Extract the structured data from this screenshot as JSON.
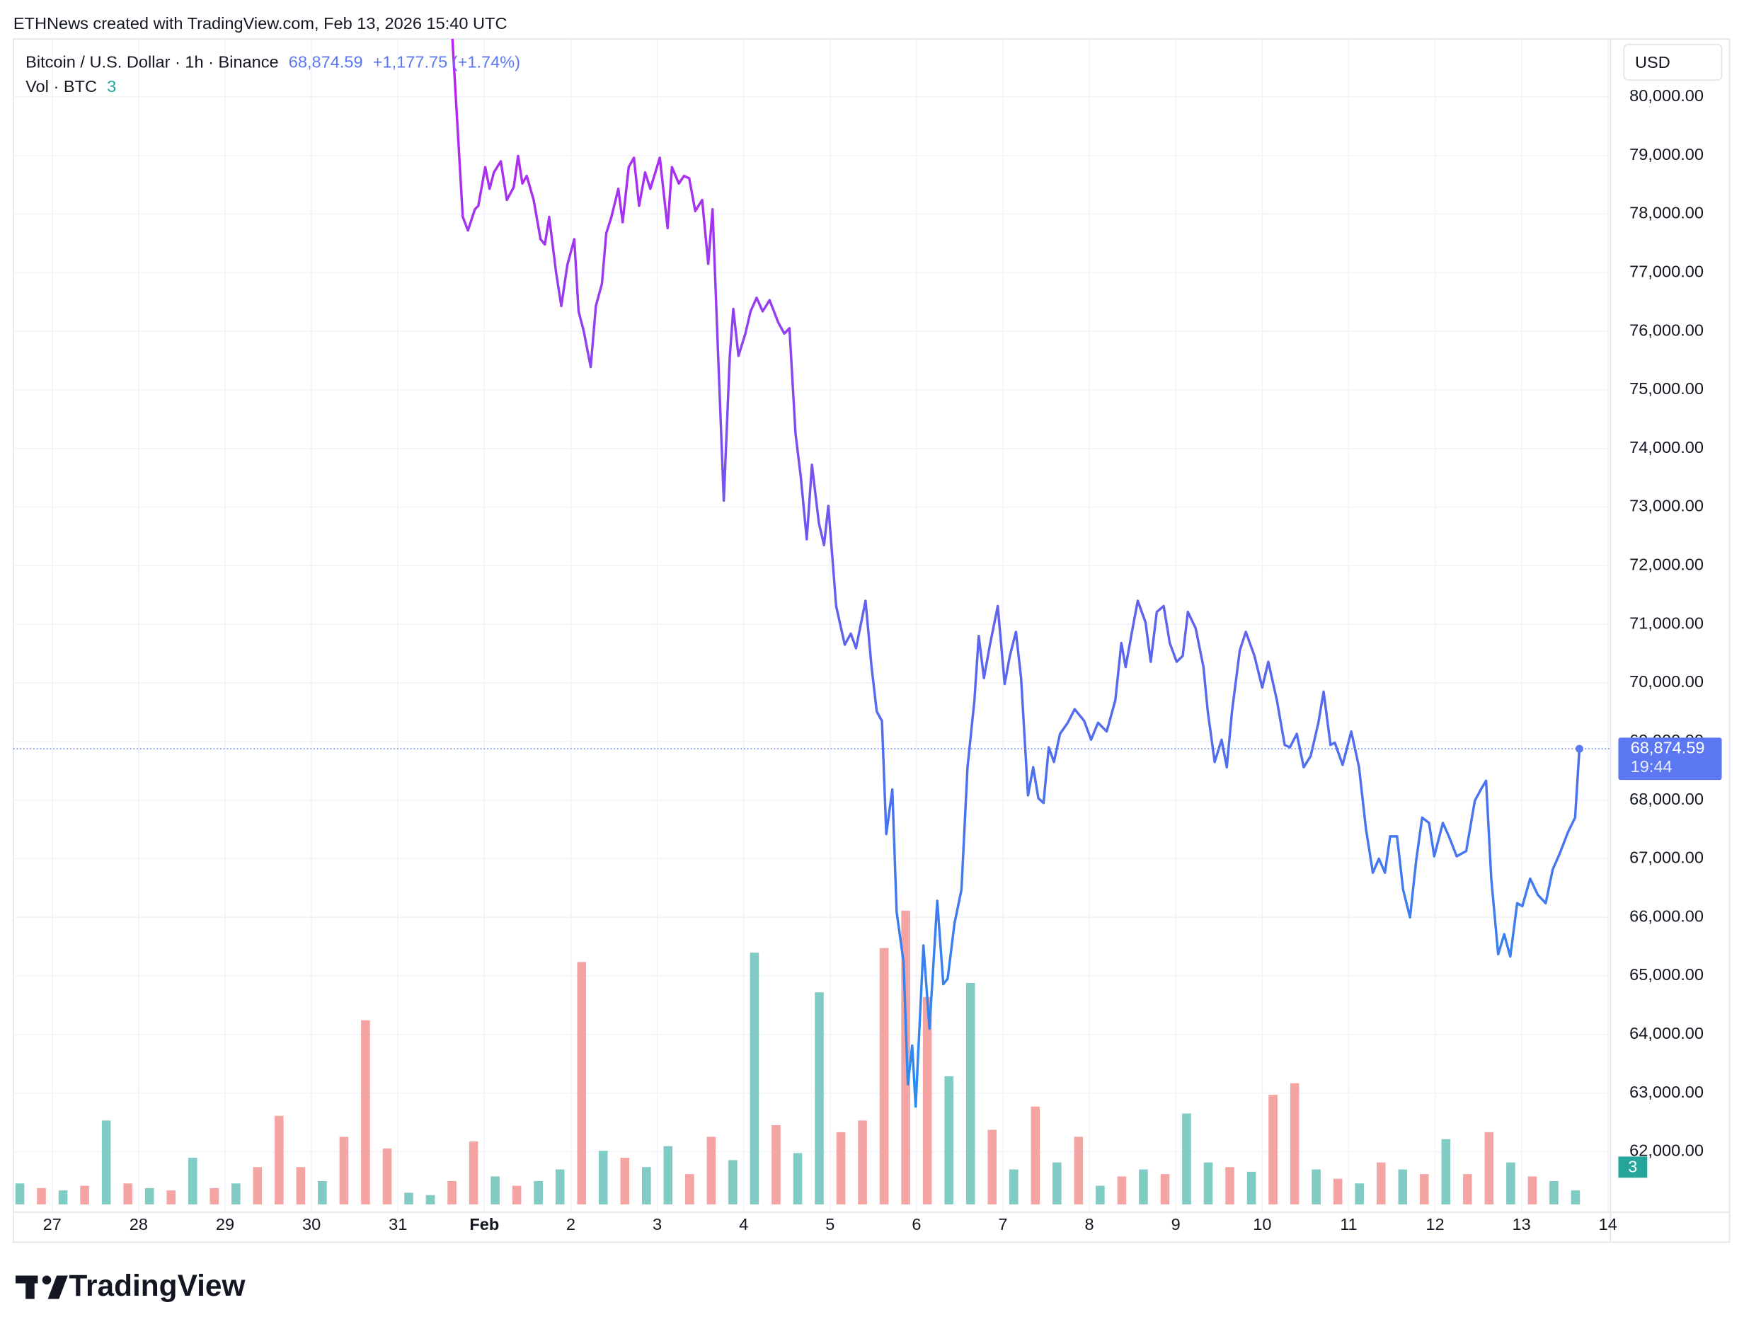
{
  "watermark": "ETHNews created with TradingView.com, Feb 13, 2026 15:40 UTC",
  "branding": "TradingView",
  "chart_data": {
    "type": "line",
    "title": "Bitcoin / U.S. Dollar · 1h · Binance",
    "last_price": {
      "value": 68874.59,
      "label": "68,874.59"
    },
    "change": "+1,177.75 (+1.74%)",
    "countdown": "19:44",
    "currency": "USD",
    "line_colors": [
      "#c21ff0",
      "#5f63ee",
      "#1e96f0"
    ],
    "last_color": "#5b78f2",
    "grid": true,
    "xlim": [
      -0.45,
      18.03
    ],
    "xticks": [
      {
        "value": 0,
        "label": "27"
      },
      {
        "value": 1,
        "label": "28"
      },
      {
        "value": 2,
        "label": "29"
      },
      {
        "value": 3,
        "label": "30"
      },
      {
        "value": 4,
        "label": "31"
      },
      {
        "value": 5,
        "label": "Feb"
      },
      {
        "value": 6,
        "label": "2"
      },
      {
        "value": 7,
        "label": "3"
      },
      {
        "value": 8,
        "label": "4"
      },
      {
        "value": 9,
        "label": "5"
      },
      {
        "value": 10,
        "label": "6"
      },
      {
        "value": 11,
        "label": "7"
      },
      {
        "value": 12,
        "label": "8"
      },
      {
        "value": 13,
        "label": "9"
      },
      {
        "value": 14,
        "label": "10"
      },
      {
        "value": 15,
        "label": "11"
      },
      {
        "value": 16,
        "label": "12"
      },
      {
        "value": 17,
        "label": "13"
      },
      {
        "value": 18,
        "label": "14"
      }
    ],
    "ylim": [
      61000,
      81000
    ],
    "yticks": [
      {
        "value": 62000,
        "label": "62,000.00"
      },
      {
        "value": 63000,
        "label": "63,000.00"
      },
      {
        "value": 64000,
        "label": "64,000.00"
      },
      {
        "value": 65000,
        "label": "65,000.00"
      },
      {
        "value": 66000,
        "label": "66,000.00"
      },
      {
        "value": 67000,
        "label": "67,000.00"
      },
      {
        "value": 68000,
        "label": "68,000.00"
      },
      {
        "value": 69000,
        "label": "69,000.00"
      },
      {
        "value": 70000,
        "label": "70,000.00"
      },
      {
        "value": 71000,
        "label": "71,000.00"
      },
      {
        "value": 72000,
        "label": "72,000.00"
      },
      {
        "value": 73000,
        "label": "73,000.00"
      },
      {
        "value": 74000,
        "label": "74,000.00"
      },
      {
        "value": 75000,
        "label": "75,000.00"
      },
      {
        "value": 76000,
        "label": "76,000.00"
      },
      {
        "value": 77000,
        "label": "77,000.00"
      },
      {
        "value": 78000,
        "label": "78,000.00"
      },
      {
        "value": 79000,
        "label": "79,000.00"
      },
      {
        "value": 80000,
        "label": "80,000.00"
      }
    ],
    "x": [
      4.63,
      4.75,
      4.81,
      4.89,
      4.93,
      5.01,
      5.06,
      5.11,
      5.19,
      5.26,
      5.34,
      5.39,
      5.44,
      5.49,
      5.57,
      5.65,
      5.7,
      5.75,
      5.83,
      5.89,
      5.96,
      6.04,
      6.09,
      6.15,
      6.23,
      6.29,
      6.36,
      6.41,
      6.47,
      6.55,
      6.6,
      6.67,
      6.73,
      6.79,
      6.86,
      6.92,
      7.03,
      7.12,
      7.17,
      7.25,
      7.31,
      7.37,
      7.44,
      7.52,
      7.59,
      7.64,
      7.71,
      7.77,
      7.84,
      7.88,
      7.94,
      8.02,
      8.08,
      8.15,
      8.22,
      8.3,
      8.4,
      8.47,
      8.53,
      8.6,
      8.66,
      8.73,
      8.79,
      8.87,
      8.93,
      8.98,
      9.07,
      9.17,
      9.24,
      9.3,
      9.41,
      9.48,
      9.54,
      9.6,
      9.65,
      9.72,
      9.77,
      9.85,
      9.9,
      9.95,
      9.99,
      10.08,
      10.15,
      10.24,
      10.31,
      10.36,
      10.44,
      10.52,
      10.59,
      10.67,
      10.72,
      10.78,
      10.85,
      10.94,
      11.02,
      11.08,
      11.15,
      11.21,
      11.29,
      11.35,
      11.41,
      11.47,
      11.53,
      11.59,
      11.66,
      11.75,
      11.83,
      11.94,
      12.02,
      12.1,
      12.2,
      12.3,
      12.37,
      12.42,
      12.5,
      12.56,
      12.65,
      12.71,
      12.78,
      12.86,
      12.93,
      13.01,
      13.08,
      13.14,
      13.23,
      13.32,
      13.37,
      13.45,
      13.53,
      13.59,
      13.65,
      13.74,
      13.81,
      13.91,
      14.0,
      14.07,
      14.17,
      14.26,
      14.32,
      14.4,
      14.48,
      14.56,
      14.65,
      14.71,
      14.79,
      14.84,
      14.93,
      15.03,
      15.12,
      15.2,
      15.28,
      15.35,
      15.42,
      15.48,
      15.56,
      15.63,
      15.71,
      15.78,
      15.85,
      15.93,
      15.99,
      16.09,
      16.16,
      16.25,
      16.36,
      16.46,
      16.53,
      16.59,
      16.65,
      16.73,
      16.8,
      16.87,
      16.95,
      17.01,
      17.1,
      17.19,
      17.28,
      17.36,
      17.44,
      17.54,
      17.62,
      17.67
    ],
    "values": [
      80990,
      77950,
      77720,
      78080,
      78140,
      78800,
      78430,
      78710,
      78900,
      78240,
      78460,
      78990,
      78520,
      78650,
      78240,
      77570,
      77480,
      77950,
      77000,
      76430,
      77130,
      77570,
      76340,
      76000,
      75390,
      76430,
      76810,
      77670,
      77950,
      78430,
      77860,
      78800,
      78960,
      78140,
      78710,
      78430,
      78960,
      77760,
      78800,
      78520,
      78650,
      78610,
      78050,
      78240,
      77150,
      78080,
      75390,
      73110,
      75580,
      76380,
      75580,
      75960,
      76340,
      76570,
      76340,
      76530,
      76150,
      75960,
      76050,
      74250,
      73530,
      72450,
      73720,
      72730,
      72350,
      73020,
      71310,
      70650,
      70840,
      70590,
      71400,
      70270,
      69510,
      69350,
      67420,
      68180,
      66090,
      65240,
      63150,
      63810,
      62770,
      65520,
      64100,
      66280,
      64860,
      64950,
      65900,
      66470,
      68560,
      69700,
      70800,
      70080,
      70650,
      71310,
      69980,
      70460,
      70870,
      70080,
      68080,
      68560,
      68030,
      67950,
      68900,
      68650,
      69130,
      69320,
      69550,
      69350,
      69030,
      69320,
      69170,
      69700,
      70680,
      70270,
      70930,
      71400,
      71030,
      70360,
      71210,
      71310,
      70680,
      70360,
      70460,
      71210,
      70930,
      70270,
      69510,
      68650,
      69030,
      68560,
      69510,
      70550,
      70870,
      70460,
      69920,
      70360,
      69700,
      68940,
      68900,
      69130,
      68560,
      68750,
      69320,
      69850,
      68940,
      68980,
      68600,
      69170,
      68560,
      67510,
      66760,
      67000,
      66760,
      67380,
      67380,
      66470,
      66000,
      66950,
      67700,
      67610,
      67040,
      67610,
      67380,
      67040,
      67130,
      67990,
      68180,
      68330,
      66660,
      65370,
      65710,
      65330,
      66240,
      66190,
      66660,
      66380,
      66240,
      66810,
      67080,
      67460,
      67700,
      68874.59
    ],
    "volume": {
      "title": "Vol · BTC",
      "last": 3,
      "last_color": "#26a69a",
      "ylim": [
        0,
        50000
      ],
      "x": [
        -0.375,
        -0.125,
        0.125,
        0.375,
        0.625,
        0.875,
        1.125,
        1.375,
        1.625,
        1.875,
        2.125,
        2.375,
        2.625,
        2.875,
        3.125,
        3.375,
        3.625,
        3.875,
        4.125,
        4.375,
        4.625,
        4.875,
        5.125,
        5.375,
        5.625,
        5.875,
        6.125,
        6.375,
        6.625,
        6.875,
        7.125,
        7.375,
        7.625,
        7.875,
        8.125,
        8.375,
        8.625,
        8.875,
        9.125,
        9.375,
        9.625,
        9.875,
        10.125,
        10.375,
        10.625,
        10.875,
        11.125,
        11.375,
        11.625,
        11.875,
        12.125,
        12.375,
        12.625,
        12.875,
        13.125,
        13.375,
        13.625,
        13.875,
        14.125,
        14.375,
        14.625,
        14.875,
        15.125,
        15.375,
        15.625,
        15.875,
        16.125,
        16.375,
        16.625,
        16.875,
        17.125,
        17.375,
        17.625
      ],
      "values": [
        900,
        700,
        600,
        800,
        3600,
        900,
        700,
        600,
        2000,
        700,
        900,
        1600,
        3800,
        1600,
        1000,
        2900,
        7900,
        2400,
        500,
        400,
        1000,
        2700,
        1200,
        800,
        1000,
        1500,
        10400,
        2300,
        2000,
        1600,
        2500,
        1300,
        2900,
        1900,
        10800,
        3400,
        2200,
        9100,
        3100,
        3600,
        11000,
        12600,
        8900,
        5500,
        9500,
        3200,
        1500,
        4200,
        1800,
        2900,
        800,
        1200,
        1500,
        1300,
        3900,
        1800,
        1600,
        1400,
        4700,
        5200,
        1500,
        1100,
        900,
        1800,
        1500,
        1300,
        2800,
        1300,
        3100,
        1800,
        1200,
        1000,
        600
      ],
      "colors": [
        "#80cbc4",
        "#f4a4a2",
        "#80cbc4",
        "#f4a4a2",
        "#80cbc4",
        "#f4a4a2",
        "#80cbc4",
        "#f4a4a2",
        "#80cbc4",
        "#f4a4a2",
        "#80cbc4",
        "#f4a4a2",
        "#f4a4a2",
        "#f4a4a2",
        "#80cbc4",
        "#f4a4a2",
        "#f4a4a2",
        "#f4a4a2",
        "#80cbc4",
        "#80cbc4",
        "#f4a4a2",
        "#f4a4a2",
        "#80cbc4",
        "#f4a4a2",
        "#80cbc4",
        "#80cbc4",
        "#f4a4a2",
        "#80cbc4",
        "#f4a4a2",
        "#80cbc4",
        "#80cbc4",
        "#f4a4a2",
        "#f4a4a2",
        "#80cbc4",
        "#80cbc4",
        "#f4a4a2",
        "#80cbc4",
        "#80cbc4",
        "#f4a4a2",
        "#f4a4a2",
        "#f4a4a2",
        "#f4a4a2",
        "#f4a4a2",
        "#80cbc4",
        "#80cbc4",
        "#f4a4a2",
        "#80cbc4",
        "#f4a4a2",
        "#80cbc4",
        "#f4a4a2",
        "#80cbc4",
        "#f4a4a2",
        "#80cbc4",
        "#f4a4a2",
        "#80cbc4",
        "#80cbc4",
        "#f4a4a2",
        "#80cbc4",
        "#f4a4a2",
        "#f4a4a2",
        "#80cbc4",
        "#f4a4a2",
        "#80cbc4",
        "#f4a4a2",
        "#80cbc4",
        "#f4a4a2",
        "#80cbc4",
        "#f4a4a2",
        "#f4a4a2",
        "#80cbc4",
        "#f4a4a2",
        "#80cbc4",
        "#80cbc4"
      ]
    }
  }
}
